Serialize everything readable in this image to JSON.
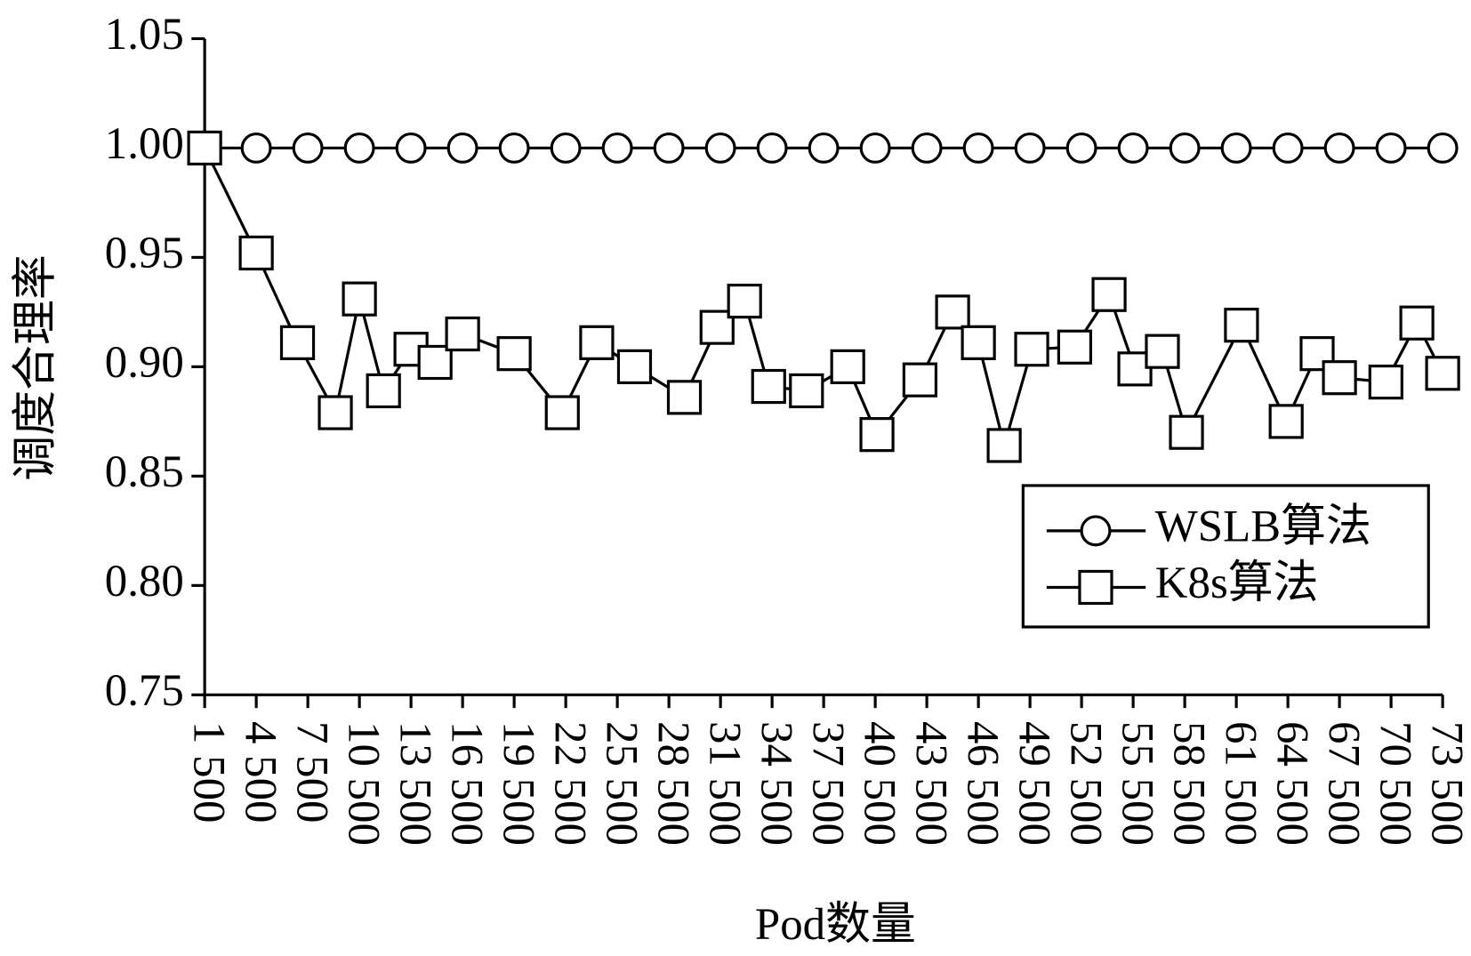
{
  "chart_data": {
    "type": "line",
    "xlabel": "Pod数量",
    "ylabel": "调度合理率",
    "xlim": [
      1500,
      73500
    ],
    "ylim": [
      0.75,
      1.05
    ],
    "xticks": [
      {
        "value": 1500,
        "label": "1 500"
      },
      {
        "value": 4500,
        "label": "4 500"
      },
      {
        "value": 7500,
        "label": "7 500"
      },
      {
        "value": 10500,
        "label": "10 500"
      },
      {
        "value": 13500,
        "label": "13 500"
      },
      {
        "value": 16500,
        "label": "16 500"
      },
      {
        "value": 19500,
        "label": "19 500"
      },
      {
        "value": 22500,
        "label": "22 500"
      },
      {
        "value": 25500,
        "label": "25 500"
      },
      {
        "value": 28500,
        "label": "28 500"
      },
      {
        "value": 31500,
        "label": "31 500"
      },
      {
        "value": 34500,
        "label": "34 500"
      },
      {
        "value": 37500,
        "label": "37 500"
      },
      {
        "value": 40500,
        "label": "40 500"
      },
      {
        "value": 43500,
        "label": "43 500"
      },
      {
        "value": 46500,
        "label": "46 500"
      },
      {
        "value": 49500,
        "label": "49 500"
      },
      {
        "value": 52500,
        "label": "52 500"
      },
      {
        "value": 55500,
        "label": "55 500"
      },
      {
        "value": 58500,
        "label": "58 500"
      },
      {
        "value": 61500,
        "label": "61 500"
      },
      {
        "value": 64500,
        "label": "64 500"
      },
      {
        "value": 67500,
        "label": "67 500"
      },
      {
        "value": 70500,
        "label": "70 500"
      },
      {
        "value": 73500,
        "label": "73 500"
      }
    ],
    "yticks": [
      0.75,
      {
        "value": 0.8,
        "label": "0.80"
      },
      0.85,
      {
        "value": 0.9,
        "label": "0.90"
      },
      0.95,
      {
        "value": 1.0,
        "label": "1.00"
      },
      1.05
    ],
    "legend": "lower right",
    "series": [
      {
        "name": "WSLB算法",
        "color": "#000000",
        "marker": "circle",
        "x": [
          1500,
          4500,
          7500,
          10500,
          13500,
          16500,
          19500,
          22500,
          25500,
          28500,
          31500,
          34500,
          37500,
          40500,
          43500,
          46500,
          49500,
          52500,
          55500,
          58500,
          61500,
          64500,
          67500,
          70500,
          73500
        ],
        "values": [
          1.0,
          1.0,
          1.0,
          1.0,
          1.0,
          1.0,
          1.0,
          1.0,
          1.0,
          1.0,
          1.0,
          1.0,
          1.0,
          1.0,
          1.0,
          1.0,
          1.0,
          1.0,
          1.0,
          1.0,
          1.0,
          1.0,
          1.0,
          1.0,
          1.0
        ]
      },
      {
        "name": "K8s算法",
        "color": "#000000",
        "marker": "square",
        "x": [
          1500,
          4500,
          6900,
          9100,
          10500,
          11900,
          13500,
          14900,
          16500,
          19500,
          22300,
          24300,
          26500,
          29400,
          31300,
          32900,
          34300,
          36500,
          38900,
          40600,
          43100,
          45000,
          46500,
          48000,
          49600,
          52100,
          54100,
          55600,
          57200,
          58600,
          61800,
          64400,
          66200,
          67500,
          70200,
          72000,
          73500
        ],
        "values": [
          1.0,
          0.952,
          0.911,
          0.879,
          0.931,
          0.889,
          0.908,
          0.902,
          0.915,
          0.906,
          0.879,
          0.911,
          0.9,
          0.886,
          0.918,
          0.93,
          0.891,
          0.889,
          0.9,
          0.869,
          0.894,
          0.925,
          0.911,
          0.864,
          0.908,
          0.909,
          0.933,
          0.899,
          0.907,
          0.87,
          0.919,
          0.875,
          0.906,
          0.895,
          0.893,
          0.92,
          0.897
        ]
      }
    ]
  }
}
